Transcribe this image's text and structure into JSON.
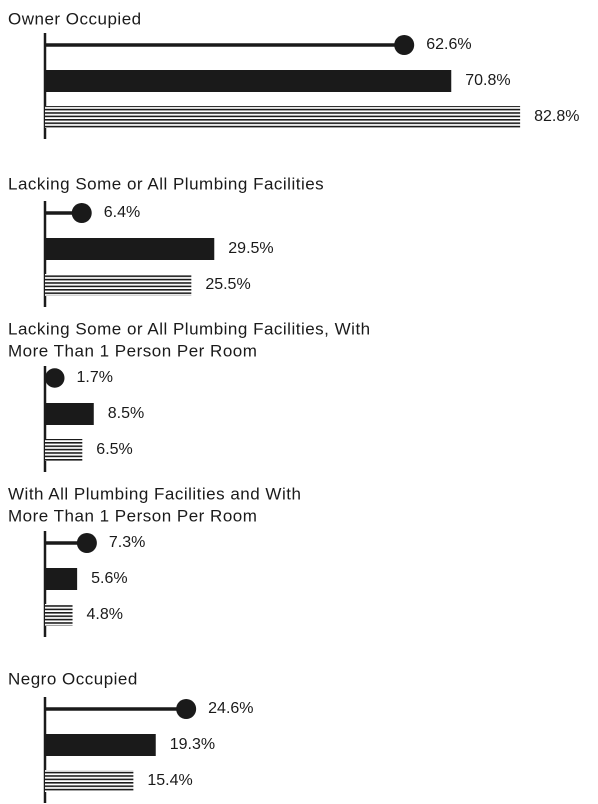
{
  "chart_data": [
    {
      "type": "bar",
      "title_lines": [
        "Owner Occupied"
      ],
      "styles": [
        "lollipop",
        "solid",
        "hatched"
      ],
      "color": "#1a1a1a",
      "xlim": [
        0,
        84
      ],
      "values": [
        62.6,
        70.8,
        82.8
      ],
      "value_labels": [
        "62.6%",
        "70.8%",
        "82.8%"
      ]
    },
    {
      "type": "bar",
      "title_lines": [
        "Lacking Some or All Plumbing Facilities"
      ],
      "styles": [
        "lollipop",
        "solid",
        "hatched"
      ],
      "color": "#1a1a1a",
      "xlim": [
        0,
        84
      ],
      "values": [
        6.4,
        29.5,
        25.5
      ],
      "value_labels": [
        "6.4%",
        "29.5%",
        "25.5%"
      ]
    },
    {
      "type": "bar",
      "title_lines": [
        "Lacking Some or All Plumbing Facilities, With",
        "More Than 1 Person Per Room"
      ],
      "styles": [
        "lollipop",
        "solid",
        "hatched"
      ],
      "color": "#1a1a1a",
      "xlim": [
        0,
        84
      ],
      "values": [
        1.7,
        8.5,
        6.5
      ],
      "value_labels": [
        "1.7%",
        "8.5%",
        "6.5%"
      ]
    },
    {
      "type": "bar",
      "title_lines": [
        "With All Plumbing Facilities and With",
        "More Than 1 Person Per Room"
      ],
      "styles": [
        "lollipop",
        "solid",
        "hatched"
      ],
      "color": "#1a1a1a",
      "xlim": [
        0,
        84
      ],
      "values": [
        7.3,
        5.6,
        4.8
      ],
      "value_labels": [
        "7.3%",
        "5.6%",
        "4.8%"
      ]
    },
    {
      "type": "bar",
      "title_lines": [
        "Negro Occupied"
      ],
      "styles": [
        "lollipop",
        "solid",
        "hatched"
      ],
      "color": "#1a1a1a",
      "xlim": [
        0,
        84
      ],
      "values": [
        24.6,
        19.3,
        15.4
      ],
      "value_labels": [
        "24.6%",
        "19.3%",
        "15.4%"
      ]
    }
  ]
}
